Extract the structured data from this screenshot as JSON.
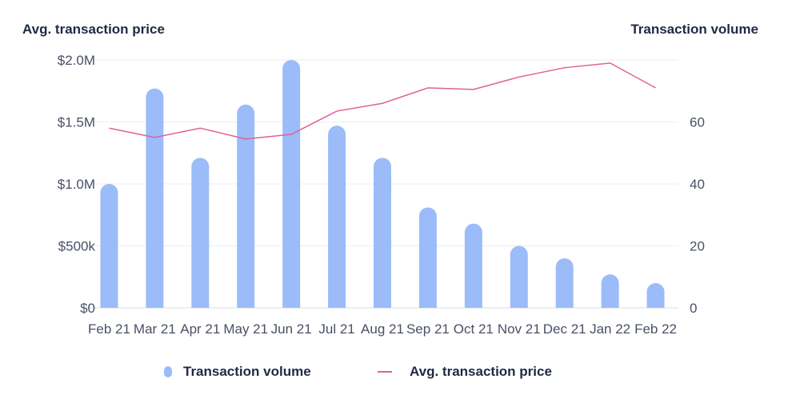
{
  "chart_data": {
    "type": "bar",
    "left_axis_title": "Avg. transaction price",
    "right_axis_title": "Transaction volume",
    "categories": [
      "Feb 21",
      "Mar 21",
      "Apr 21",
      "May 21",
      "Jun 21",
      "Jul 21",
      "Aug 21",
      "Sep 21",
      "Oct 21",
      "Nov 21",
      "Dec 21",
      "Jan 22",
      "Feb 22"
    ],
    "left_ticks": [
      "$0",
      "$500k",
      "$1.0M",
      "$1.5M",
      "$2.0M"
    ],
    "right_ticks": [
      "0",
      "20",
      "40",
      "60"
    ],
    "left_ylim": [
      0,
      2000000
    ],
    "right_ylim": [
      0,
      80
    ],
    "grid": true,
    "legend_position": "bottom",
    "series": [
      {
        "name": "Transaction volume",
        "kind": "bar",
        "axis": "left",
        "color": "#9bbcf9",
        "values": [
          1000000,
          1770000,
          1210000,
          1640000,
          2000000,
          1470000,
          1210000,
          810000,
          680000,
          500000,
          400000,
          270000,
          200000
        ]
      },
      {
        "name": "Avg. transaction price",
        "kind": "line",
        "axis": "right",
        "color": "#e0609a",
        "values": [
          58,
          55,
          58,
          54.5,
          56,
          63.5,
          66,
          71,
          70.5,
          74.5,
          77.5,
          79,
          71
        ]
      }
    ]
  }
}
